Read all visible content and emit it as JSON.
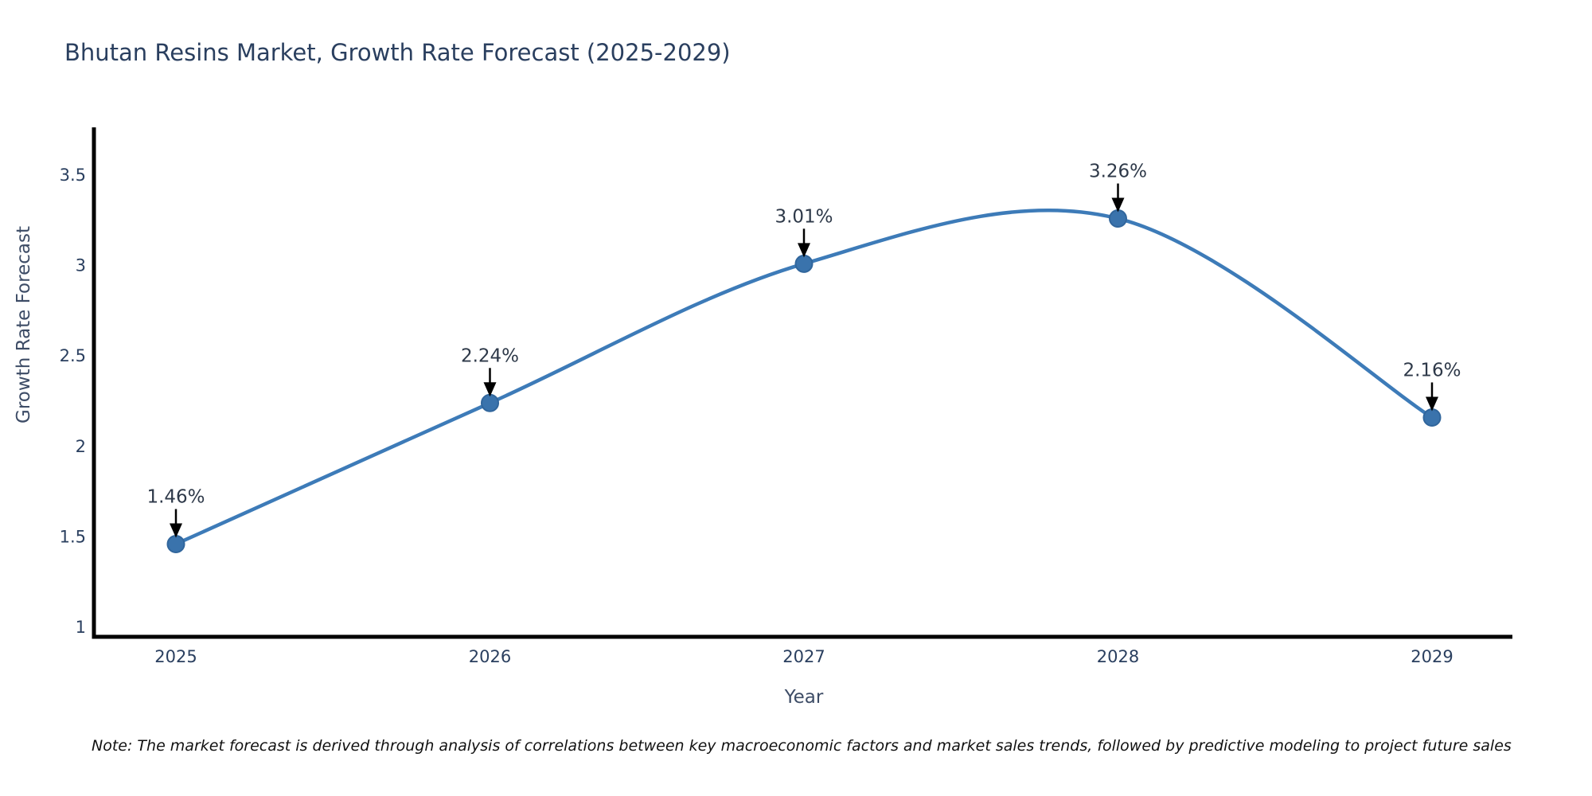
{
  "chart_data": {
    "type": "line",
    "title": "Bhutan Resins Market, Growth Rate Forecast (2025-2029)",
    "xlabel": "Year",
    "ylabel": "Growth Rate Forecast",
    "x": [
      2025,
      2026,
      2027,
      2028,
      2029
    ],
    "y": [
      1.46,
      2.24,
      3.01,
      3.26,
      2.16
    ],
    "point_labels": [
      "1.46%",
      "2.24%",
      "3.01%",
      "3.26%",
      "2.16%"
    ],
    "xtick_labels": [
      "2025",
      "2026",
      "2027",
      "2028",
      "2029"
    ],
    "ytick_values": [
      1,
      1.5,
      2,
      2.5,
      3,
      3.5
    ],
    "ytick_labels": [
      "1",
      "1.5",
      "2",
      "2.5",
      "3",
      "3.5"
    ],
    "xlim": [
      2025,
      2029
    ],
    "ylim": [
      1,
      3.76
    ],
    "grid": false,
    "legend": "none",
    "line_shape": "spline",
    "line_color": "#3d7bb8",
    "marker_color": "#3a73ac",
    "marker_edge_color": "#31669c",
    "axis_color": "#000000",
    "annotation_arrow_color": "#000000",
    "note": "Note: The market forecast is derived through analysis of correlations between key macroeconomic factors and market sales trends, followed by predictive modeling to project future sales"
  }
}
